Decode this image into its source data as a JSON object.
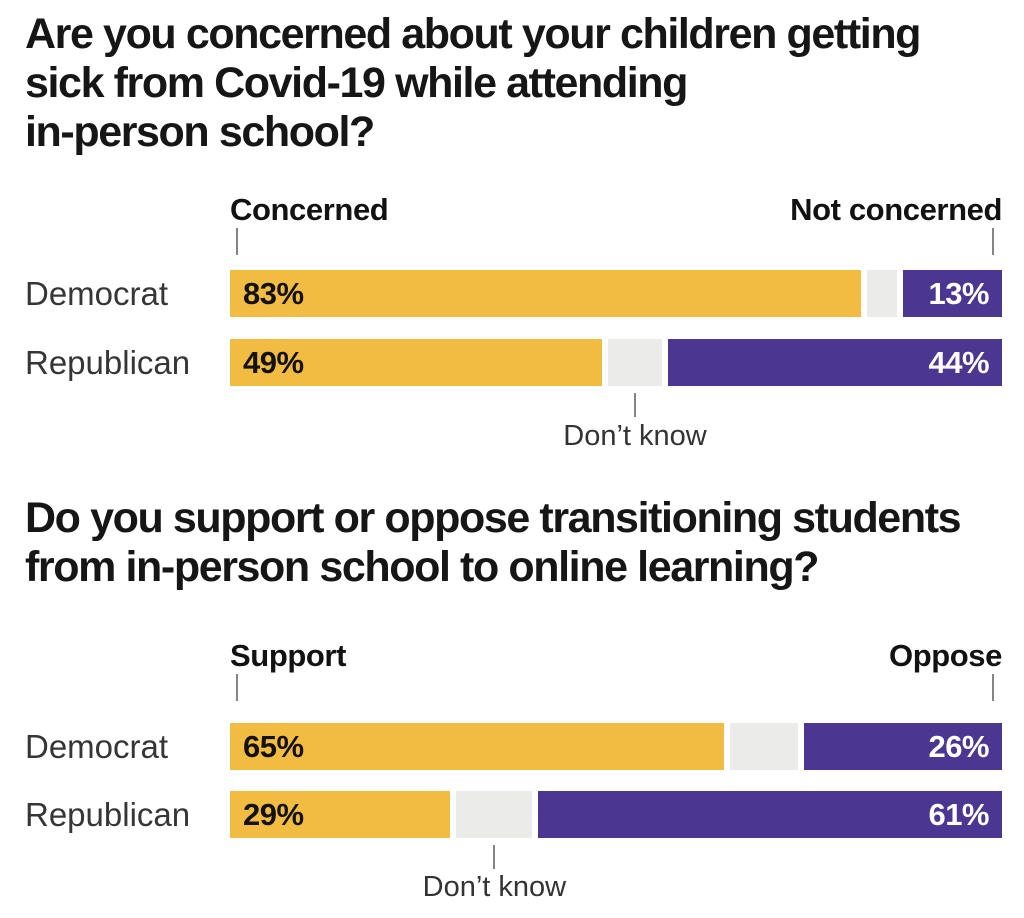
{
  "colors": {
    "yes_bar": "#f2bb41",
    "no_bar": "#4b3691",
    "dontknow_bar": "#ebebe9",
    "tick": "#858585",
    "title_text": "#161616",
    "label_text": "#363636"
  },
  "chart_data": [
    {
      "type": "bar",
      "title": "Are you concerned about your children getting\nsick from Covid-19 while attending\nin-person school?",
      "left_label": "Concerned",
      "right_label": "Not concerned",
      "middle_label": "Don’t know",
      "categories": [
        "Democrat",
        "Republican"
      ],
      "series": [
        {
          "name": "Concerned",
          "values": [
            83,
            49
          ]
        },
        {
          "name": "Don’t know",
          "values": [
            4,
            7
          ]
        },
        {
          "name": "Not concerned",
          "values": [
            13,
            44
          ]
        }
      ],
      "value_suffix": "%",
      "xlim": [
        0,
        100
      ],
      "legend_position": "above-bars"
    },
    {
      "type": "bar",
      "title": "Do you support or oppose transitioning students\nfrom in-person school to online learning?",
      "left_label": "Support",
      "right_label": "Oppose",
      "middle_label": "Don’t know",
      "categories": [
        "Democrat",
        "Republican"
      ],
      "series": [
        {
          "name": "Support",
          "values": [
            65,
            29
          ]
        },
        {
          "name": "Don’t know",
          "values": [
            9,
            10
          ]
        },
        {
          "name": "Oppose",
          "values": [
            26,
            61
          ]
        }
      ],
      "value_suffix": "%",
      "xlim": [
        0,
        100
      ],
      "legend_position": "above-bars"
    }
  ]
}
